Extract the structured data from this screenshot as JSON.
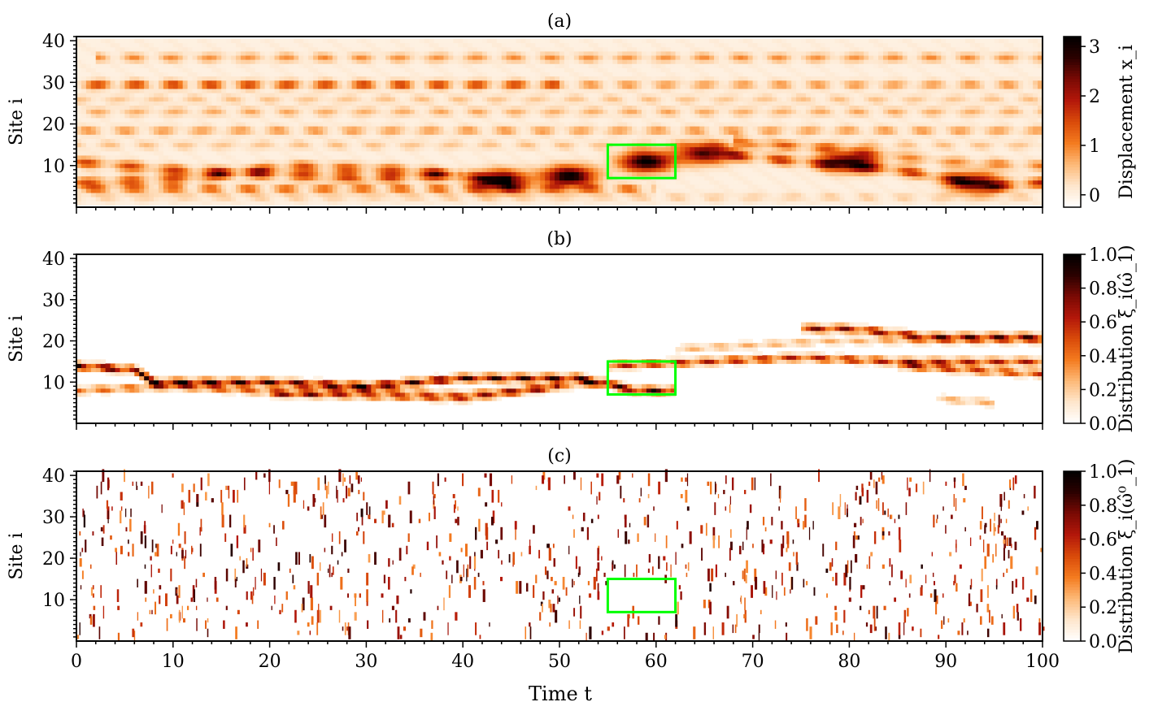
{
  "figure": {
    "xlabel": "Time t",
    "x_range": [
      0,
      100
    ],
    "x_ticks": [
      0,
      10,
      20,
      30,
      40,
      50,
      60,
      70,
      80,
      90,
      100
    ],
    "colors": {
      "colormap": [
        "#ffffff",
        "#fee6cc",
        "#fdb977",
        "#f47b1f",
        "#d94a0a",
        "#b3170a",
        "#7a0a04",
        "#2b0100",
        "#000000"
      ],
      "highlight": "#00ff00"
    }
  },
  "chart_data": [
    {
      "type": "heatmap",
      "title": "(a)",
      "ylabel": "Site i",
      "y_range": [
        0,
        41
      ],
      "y_ticks": [
        10,
        20,
        30,
        40
      ],
      "colorbar": {
        "label": "Displacement x_i",
        "range": [
          -0.25,
          3.2
        ],
        "ticks": [
          0,
          1,
          2,
          3
        ]
      },
      "highlight_box": {
        "t": [
          55,
          62
        ],
        "site": [
          7,
          15
        ]
      },
      "description": "oscillating displacement field; strong localized breather moving between sites ~5-12",
      "features": [
        {
          "kind": "stripe",
          "site": 36,
          "t": [
            2,
            100
          ],
          "amp": 0.9
        },
        {
          "kind": "stripe",
          "site": 29.5,
          "t": [
            0,
            50
          ],
          "amp": 1.7
        },
        {
          "kind": "stripe",
          "site": 29.5,
          "t": [
            50,
            100
          ],
          "amp": 0.9
        },
        {
          "kind": "stripe",
          "site": 26,
          "t": [
            0,
            100
          ],
          "amp": 0.5
        },
        {
          "kind": "stripe",
          "site": 23,
          "t": [
            0,
            100
          ],
          "amp": 0.7
        },
        {
          "kind": "stripe",
          "site": 18.5,
          "t": [
            0,
            100
          ],
          "amp": 0.9
        },
        {
          "kind": "stripe",
          "site": 15,
          "t": [
            0,
            100
          ],
          "amp": 0.5
        },
        {
          "kind": "stripe",
          "site": 4.5,
          "t": [
            0,
            60
          ],
          "amp": 1.3
        },
        {
          "kind": "stripe",
          "site": 2.5,
          "t": [
            0,
            100
          ],
          "amp": 0.4
        },
        {
          "kind": "blob",
          "t": 44,
          "site": 6.5,
          "amp": 3.0
        },
        {
          "kind": "blob",
          "t": 51,
          "site": 7.5,
          "amp": 3.2
        },
        {
          "kind": "blob",
          "t": 59,
          "site": 11,
          "amp": 3.2
        },
        {
          "kind": "blob",
          "t": 65,
          "site": 13,
          "amp": 2.6
        },
        {
          "kind": "blob",
          "t": 80,
          "site": 11,
          "amp": 2.6
        },
        {
          "kind": "blob",
          "t": 93,
          "site": 6,
          "amp": 2.4
        },
        {
          "kind": "path",
          "points": [
            [
              0,
              11
            ],
            [
              10,
              9
            ],
            [
              20,
              8
            ],
            [
              30,
              7
            ],
            [
              40,
              8
            ]
          ],
          "amp": 1.6
        },
        {
          "kind": "path",
          "points": [
            [
              0,
              6
            ],
            [
              12,
              7
            ],
            [
              22,
              10
            ],
            [
              35,
              9
            ],
            [
              45,
              6
            ]
          ],
          "amp": 1.4
        },
        {
          "kind": "path",
          "points": [
            [
              66,
              13
            ],
            [
              75,
              11
            ],
            [
              85,
              9
            ],
            [
              95,
              5
            ],
            [
              100,
              6
            ]
          ],
          "amp": 1.8
        },
        {
          "kind": "path",
          "points": [
            [
              68,
              16
            ],
            [
              78,
              14
            ],
            [
              90,
              11
            ],
            [
              100,
              10
            ]
          ],
          "amp": 1.0
        }
      ]
    },
    {
      "type": "heatmap",
      "title": "(b)",
      "ylabel": "Site i",
      "y_range": [
        0,
        41
      ],
      "y_ticks": [
        10,
        20,
        30,
        40
      ],
      "colorbar": {
        "label": "Distribution ξ_i(ω̂_1)",
        "range": [
          0,
          1
        ],
        "ticks": [
          0.0,
          0.2,
          0.4,
          0.6,
          0.8,
          1.0
        ]
      },
      "highlight_box": {
        "t": [
          55,
          62
        ],
        "site": [
          7,
          15
        ]
      },
      "description": "mode distribution concentrated near sites 5-14, shifting to sites 12-24 after t~60",
      "features": [
        {
          "kind": "path",
          "points": [
            [
              0,
              14
            ],
            [
              6,
              13
            ],
            [
              8,
              10
            ],
            [
              20,
              10
            ],
            [
              30,
              9
            ],
            [
              40,
              11
            ],
            [
              52,
              11
            ],
            [
              58,
              8
            ],
            [
              62,
              8
            ]
          ],
          "amp": 0.95
        },
        {
          "kind": "path",
          "points": [
            [
              0,
              8
            ],
            [
              10,
              9
            ],
            [
              25,
              7
            ],
            [
              40,
              6
            ],
            [
              50,
              9
            ]
          ],
          "amp": 0.5
        },
        {
          "kind": "path",
          "points": [
            [
              20,
              7
            ],
            [
              30,
              8
            ],
            [
              40,
              7
            ],
            [
              55,
              10
            ]
          ],
          "amp": 0.4
        },
        {
          "kind": "path",
          "points": [
            [
              55,
              14
            ],
            [
              65,
              15
            ],
            [
              75,
              16
            ],
            [
              85,
              15
            ],
            [
              100,
              15
            ]
          ],
          "amp": 0.7
        },
        {
          "kind": "path",
          "points": [
            [
              75,
              23
            ],
            [
              80,
              23
            ],
            [
              88,
              21
            ],
            [
              100,
              21
            ]
          ],
          "amp": 0.8
        },
        {
          "kind": "path",
          "points": [
            [
              62,
              18
            ],
            [
              70,
              19
            ],
            [
              78,
              20
            ],
            [
              100,
              20
            ]
          ],
          "amp": 0.3
        },
        {
          "kind": "path",
          "points": [
            [
              85,
              14
            ],
            [
              92,
              13
            ],
            [
              100,
              12
            ]
          ],
          "amp": 0.6
        },
        {
          "kind": "path",
          "points": [
            [
              89,
              6
            ],
            [
              95,
              5
            ]
          ],
          "amp": 0.3
        }
      ]
    },
    {
      "type": "heatmap",
      "title": "(c)",
      "ylabel": "Site i",
      "y_range": [
        0,
        41
      ],
      "y_ticks": [
        10,
        20,
        30,
        40
      ],
      "colorbar": {
        "label": "Distribution ξ_i(ω̂⁰_1)",
        "range": [
          0,
          1
        ],
        "ticks": [
          0.0,
          0.2,
          0.4,
          0.6,
          0.8,
          1.0
        ]
      },
      "highlight_box": {
        "t": [
          55,
          62
        ],
        "site": [
          7,
          15
        ]
      },
      "description": "sparse short-lived localized spikes scattered over all sites and times"
    }
  ]
}
